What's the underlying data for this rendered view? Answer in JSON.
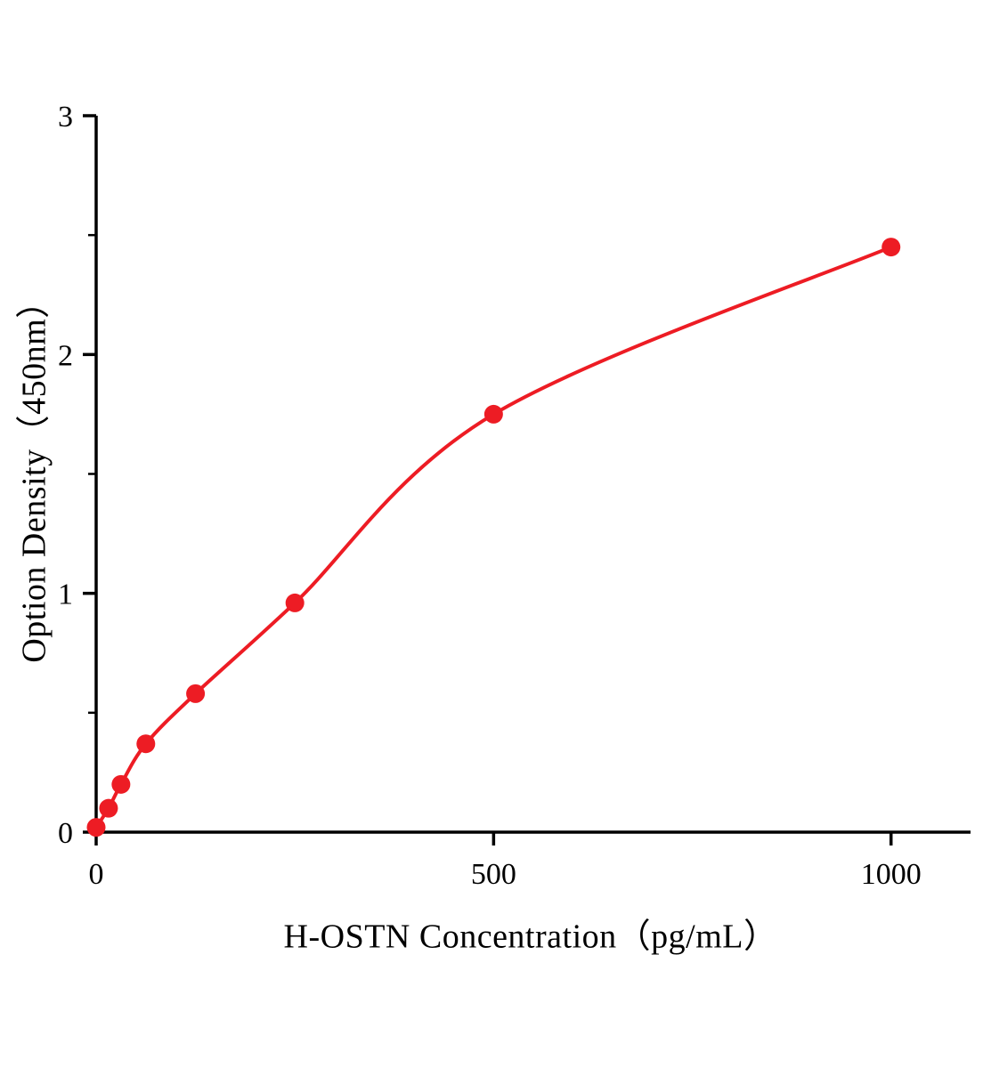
{
  "page": {
    "background": "#ffffff"
  },
  "chart_data": {
    "type": "scatter",
    "title": "",
    "xlabel": "H-OSTN Concentration（pg/mL）",
    "ylabel": "Option Density（450nm）",
    "x": [
      0,
      15.6,
      31.2,
      62.5,
      125,
      250,
      500,
      1000
    ],
    "y": [
      0.02,
      0.1,
      0.2,
      0.37,
      0.58,
      0.96,
      1.75,
      2.45
    ],
    "xlim": [
      0,
      1100
    ],
    "ylim": [
      0,
      3
    ],
    "x_ticks": [
      0,
      500,
      1000
    ],
    "y_ticks": [
      0,
      1,
      2,
      3
    ],
    "y_minor_ticks": [
      0.5,
      1.5,
      2.5
    ],
    "grid": false,
    "legend_position": "none",
    "curve_style": "smooth-fit",
    "marker_color": "#ed1c24",
    "line_color": "#ed1c24",
    "axis_color": "#000000"
  }
}
